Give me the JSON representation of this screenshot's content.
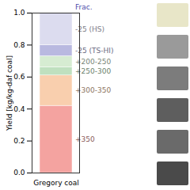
{
  "chart_data": {
    "type": "bar",
    "stacked": true,
    "categories": [
      "Gregory coal"
    ],
    "ylabel": "Yield [kg/kg-daf coal]",
    "segment_header": "Frac.",
    "ylim": [
      0,
      1
    ],
    "yticks": [
      {
        "value": 0,
        "label": "0.0"
      },
      0.2,
      0.4,
      0.6,
      0.8,
      {
        "value": 1,
        "label": "1.0"
      }
    ],
    "series": [
      {
        "name": "+350",
        "color": "#f4a3a0",
        "values": [
          0.42
        ]
      },
      {
        "name": "+300-350",
        "color": "#f9cfae",
        "values": [
          0.19
        ]
      },
      {
        "name": "+250-300",
        "color": "#bfe0bf",
        "values": [
          0.05
        ]
      },
      {
        "name": "+200-250",
        "color": "#d6ecd2",
        "values": [
          0.07
        ]
      },
      {
        "name": "-25 (TS-HI)",
        "color": "#b9b9e0",
        "values": [
          0.07
        ]
      },
      {
        "name": "-25 (HS)",
        "color": "#dcdcef",
        "values": [
          0.2
        ]
      }
    ]
  }
}
